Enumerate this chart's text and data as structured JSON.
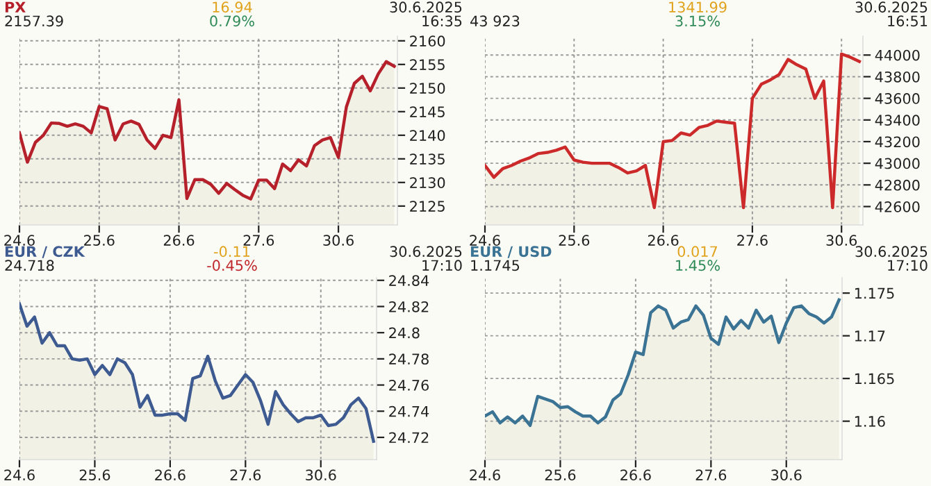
{
  "chart_data": [
    {
      "type": "area",
      "title": "PX",
      "color": "#b5202a",
      "annotations": [
        "2157.39",
        "16.94",
        "0.79%",
        "30.6.2025",
        "16:35"
      ],
      "grid": true,
      "ylim": [
        2121,
        2161
      ],
      "yticks": [
        2125,
        2130,
        2135,
        2140,
        2145,
        2150,
        2155,
        2160
      ],
      "categories": [
        "24.6",
        null,
        null,
        null,
        null,
        null,
        null,
        null,
        null,
        null,
        "25.6",
        null,
        null,
        null,
        null,
        null,
        null,
        null,
        null,
        null,
        "26.6",
        null,
        null,
        null,
        null,
        null,
        null,
        null,
        null,
        null,
        "27.6",
        null,
        null,
        null,
        null,
        null,
        null,
        null,
        null,
        null,
        "30.6",
        null,
        null,
        null,
        null,
        null,
        null,
        null
      ],
      "values": [
        2140.5,
        2134.3,
        2138.5,
        2140,
        2142.6,
        2142.5,
        2141.9,
        2142.4,
        2141.9,
        2140.5,
        2146.1,
        2145.6,
        2139,
        2142.4,
        2143,
        2142.3,
        2139,
        2137.2,
        2140,
        2139.5,
        2147.5,
        2126.6,
        2130.6,
        2130.6,
        2129.6,
        2127.7,
        2129.8,
        2128.5,
        2127.3,
        2126.5,
        2130.5,
        2130.5,
        2128.7,
        2133.9,
        2132.5,
        2134.8,
        2133.5,
        2137.8,
        2139,
        2139.5,
        2135.3,
        2146,
        2151,
        2152.5,
        2149.4,
        2153,
        2155.6,
        2154.6
      ]
    },
    {
      "type": "area",
      "color": "#cc2a2a",
      "annotations": [
        "43 923",
        "1341.99",
        "3.15%",
        "30.6.2025",
        "16:51"
      ],
      "grid": true,
      "ylim": [
        42430,
        44175
      ],
      "yticks": [
        42600,
        42800,
        43000,
        43200,
        43400,
        43600,
        43800,
        44000
      ],
      "categories": [
        "24.6",
        null,
        null,
        null,
        null,
        null,
        null,
        null,
        null,
        null,
        "25.6",
        null,
        null,
        null,
        null,
        null,
        null,
        null,
        null,
        null,
        "26.6",
        null,
        null,
        null,
        null,
        null,
        null,
        null,
        null,
        null,
        "27.6",
        null,
        null,
        null,
        null,
        null,
        null,
        null,
        null,
        null,
        "30.6",
        null,
        null
      ],
      "values": [
        42980,
        42870,
        42950,
        42980,
        43020,
        43050,
        43090,
        43100,
        43120,
        43150,
        43030,
        43010,
        43000,
        43000,
        43000,
        42960,
        42910,
        42930,
        42980,
        42590,
        43200,
        43210,
        43280,
        43260,
        43330,
        43350,
        43390,
        43380,
        43370,
        42590,
        43600,
        43730,
        43770,
        43820,
        43960,
        43910,
        43870,
        43600,
        43760,
        42590,
        44010,
        43980,
        43940
      ]
    },
    {
      "type": "area",
      "title": "EUR / CZK",
      "color": "#3d5a91",
      "annotations": [
        "24.718",
        "-0.11",
        "-0.45%",
        "30.6.2025",
        "17:10"
      ],
      "grid": true,
      "ylim": [
        24.703,
        24.842
      ],
      "yticks": [
        24.72,
        24.74,
        24.76,
        24.78,
        24.8,
        24.82,
        24.84
      ],
      "categories": [
        "24.6",
        null,
        null,
        null,
        null,
        null,
        null,
        null,
        null,
        null,
        "25.6",
        null,
        null,
        null,
        null,
        null,
        null,
        null,
        null,
        null,
        "26.6",
        null,
        null,
        null,
        null,
        null,
        null,
        null,
        null,
        null,
        "27.6",
        null,
        null,
        null,
        null,
        null,
        null,
        null,
        null,
        null,
        "30.6",
        null,
        null,
        null,
        null,
        null,
        null,
        null
      ],
      "values": [
        24.822,
        24.805,
        24.812,
        24.792,
        24.8,
        24.79,
        24.79,
        24.78,
        24.779,
        24.78,
        24.768,
        24.775,
        24.768,
        24.78,
        24.777,
        24.768,
        24.743,
        24.752,
        24.737,
        24.737,
        24.738,
        24.738,
        24.733,
        24.765,
        24.767,
        24.782,
        24.763,
        24.75,
        24.752,
        24.76,
        24.768,
        24.762,
        24.748,
        24.73,
        24.755,
        24.745,
        24.738,
        24.732,
        24.735,
        24.735,
        24.737,
        24.729,
        24.73,
        24.735,
        24.745,
        24.75,
        24.742,
        24.717
      ]
    },
    {
      "type": "area",
      "title": "EUR / USD",
      "color": "#3a7394",
      "annotations": [
        "1.1745",
        "0.017",
        "1.45%",
        "30.6.2025",
        "17:10"
      ],
      "grid": true,
      "ylim": [
        1.1555,
        1.1768
      ],
      "yticks": [
        1.16,
        1.165,
        1.17,
        1.175
      ],
      "categories": [
        "24.6",
        null,
        null,
        null,
        null,
        null,
        null,
        null,
        null,
        null,
        "25.6",
        null,
        null,
        null,
        null,
        null,
        null,
        null,
        null,
        null,
        "26.6",
        null,
        null,
        null,
        null,
        null,
        null,
        null,
        null,
        null,
        "27.6",
        null,
        null,
        null,
        null,
        null,
        null,
        null,
        null,
        null,
        "30.6",
        null,
        null,
        null,
        null,
        null,
        null,
        null
      ],
      "values": [
        1.1606,
        1.1611,
        1.1598,
        1.1605,
        1.1598,
        1.1606,
        1.1595,
        1.1629,
        1.1626,
        1.1623,
        1.1616,
        1.1617,
        1.1611,
        1.1606,
        1.1606,
        1.1598,
        1.1605,
        1.1625,
        1.1632,
        1.1654,
        1.1681,
        1.1678,
        1.1727,
        1.1735,
        1.173,
        1.1709,
        1.1716,
        1.1719,
        1.1735,
        1.1724,
        1.1697,
        1.169,
        1.1722,
        1.1708,
        1.1718,
        1.1709,
        1.173,
        1.1716,
        1.1723,
        1.1692,
        1.1715,
        1.1733,
        1.1735,
        1.1726,
        1.1722,
        1.1715,
        1.1722,
        1.1742
      ]
    }
  ]
}
